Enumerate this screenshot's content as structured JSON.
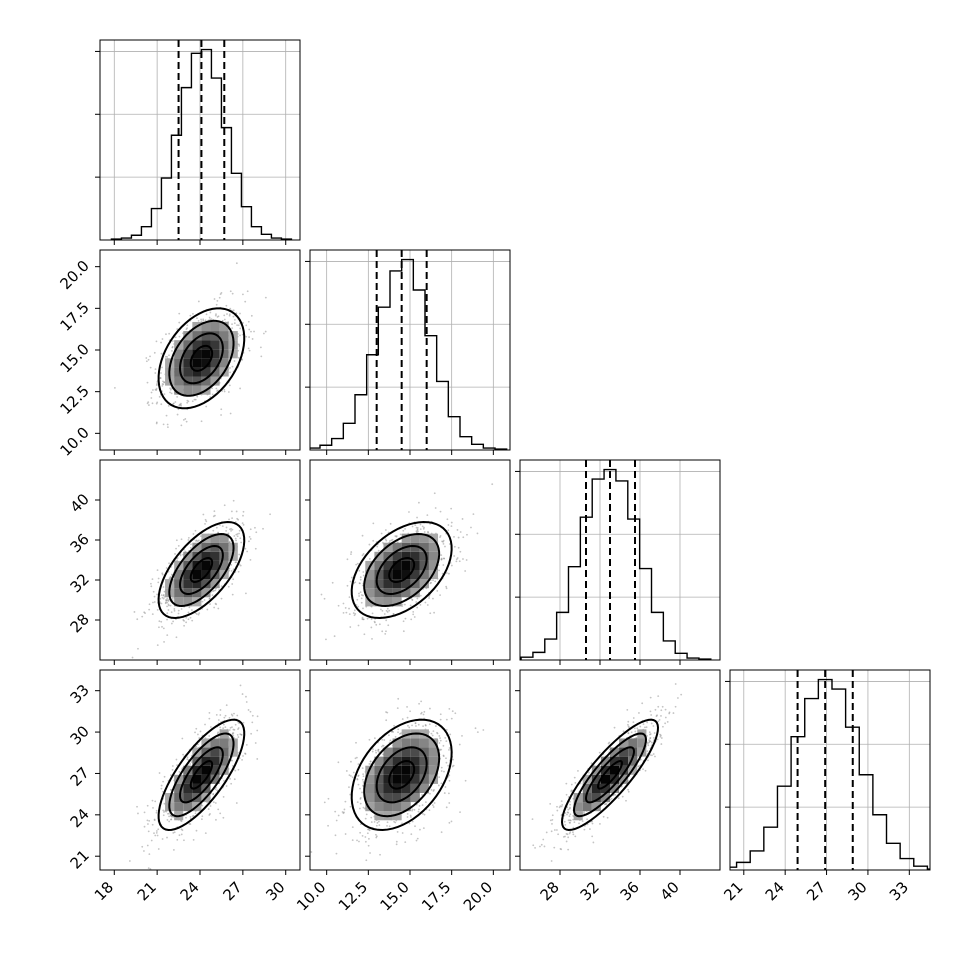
{
  "chart_data": {
    "type": "corner",
    "grid": true,
    "params": [
      {
        "range": [
          17.0,
          31.0
        ],
        "ticks": [
          18,
          21,
          24,
          27,
          30
        ],
        "tick_labels": [
          "18",
          "21",
          "24",
          "27",
          "30"
        ],
        "mean": 24.1,
        "sd": 1.5,
        "quantiles": [
          22.5,
          24.1,
          25.7
        ],
        "hist_counts": [
          1,
          2,
          5,
          14,
          33,
          65,
          110,
          160,
          196,
          200,
          170,
          118,
          70,
          35,
          14,
          6,
          2,
          1
        ]
      },
      {
        "range": [
          9.0,
          21.0
        ],
        "ticks": [
          10.0,
          12.5,
          15.0,
          17.5,
          20.0
        ],
        "tick_labels": [
          "10.0",
          "12.5",
          "15.0",
          "17.5",
          "20.0"
        ],
        "mean": 14.5,
        "sd": 1.5,
        "quantiles": [
          13.0,
          14.5,
          16.0
        ],
        "hist_counts": [
          1,
          2,
          5,
          12,
          28,
          58,
          100,
          150,
          188,
          200,
          168,
          120,
          72,
          35,
          14,
          6,
          2,
          1
        ]
      },
      {
        "range": [
          24.0,
          44.0
        ],
        "ticks": [
          28,
          32,
          36,
          40
        ],
        "tick_labels": [
          "28",
          "32",
          "36",
          "40"
        ],
        "mean": 33.0,
        "sd": 2.4,
        "quantiles": [
          30.6,
          33.0,
          35.5
        ],
        "hist_counts": [
          1,
          3,
          8,
          22,
          50,
          98,
          150,
          190,
          200,
          188,
          148,
          96,
          50,
          20,
          7,
          2,
          1
        ]
      },
      {
        "range": [
          20.0,
          34.5
        ],
        "ticks": [
          21,
          24,
          27,
          30,
          33
        ],
        "tick_labels": [
          "21",
          "24",
          "27",
          "30",
          "33"
        ],
        "mean": 26.9,
        "sd": 2.0,
        "quantiles": [
          24.9,
          26.9,
          28.9
        ],
        "hist_counts": [
          1,
          3,
          8,
          20,
          45,
          88,
          140,
          180,
          200,
          190,
          150,
          100,
          58,
          28,
          12,
          4,
          1
        ]
      }
    ],
    "correlations": [
      {
        "i": 1,
        "j": 0,
        "rho": 0.4
      },
      {
        "i": 2,
        "j": 0,
        "rho": 0.62
      },
      {
        "i": 2,
        "j": 1,
        "rho": 0.45
      },
      {
        "i": 3,
        "j": 0,
        "rho": 0.75
      },
      {
        "i": 3,
        "j": 1,
        "rho": 0.4
      },
      {
        "i": 3,
        "j": 2,
        "rho": 0.85
      }
    ],
    "contour_levels_sigma": [
      0.5,
      1.0,
      1.5,
      2.0
    ]
  }
}
